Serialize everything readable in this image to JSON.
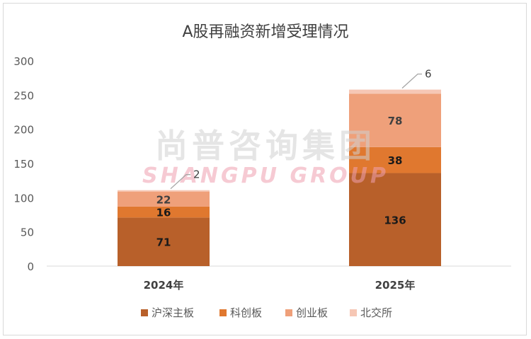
{
  "chart_data": {
    "type": "bar",
    "stacked": true,
    "title": "A股再融资新增受理情况",
    "categories": [
      "2024年",
      "2025年"
    ],
    "series": [
      {
        "name": "沪深主板",
        "values": [
          71,
          136
        ],
        "color": "#B8602A",
        "label_color": "#1a1a1a"
      },
      {
        "name": "科创板",
        "values": [
          16,
          38
        ],
        "color": "#E0782F",
        "label_color": "#1a1a1a"
      },
      {
        "name": "创业板",
        "values": [
          22,
          78
        ],
        "color": "#EFA07A",
        "label_color": "#404040"
      },
      {
        "name": "北交所",
        "values": [
          2,
          6
        ],
        "color": "#F6C7B5",
        "label_color": "#404040"
      }
    ],
    "ylim": [
      0,
      300
    ],
    "yticks": [
      0,
      50,
      100,
      150,
      200,
      250,
      300
    ],
    "grid": false,
    "legend_position": "bottom",
    "watermark": {
      "line1": "尚普咨询集团",
      "line2": "SHANGPU GROUP"
    }
  }
}
